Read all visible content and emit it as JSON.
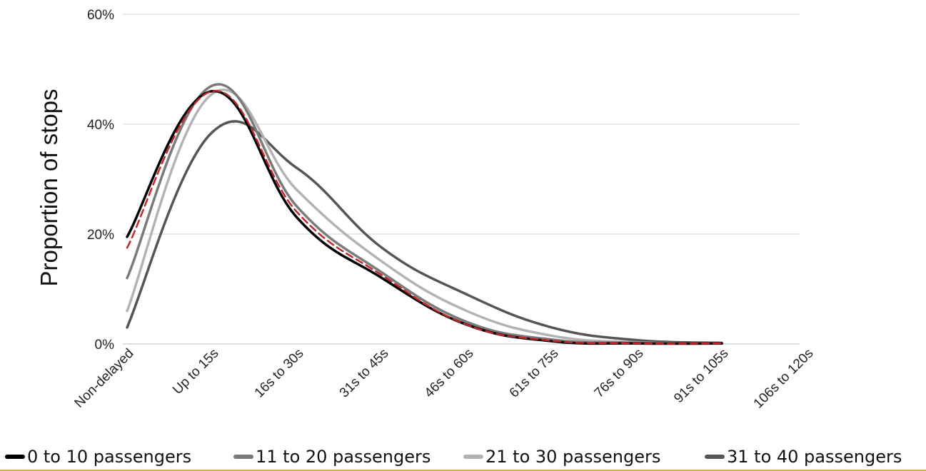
{
  "chart_data": {
    "type": "line",
    "title": "",
    "xlabel": "",
    "ylabel": "Proportion of stops",
    "categories": [
      "Non-delayed",
      "Up to 15s",
      "16s to 30s",
      "31s to 45s",
      "46s to 60s",
      "61s to 75s",
      "76s to 90s",
      "91s to 105s",
      "106s to 120s"
    ],
    "yticks": [
      "0%",
      "20%",
      "40%",
      "60%"
    ],
    "ylim": [
      0,
      60
    ],
    "grid": true,
    "legend_position": "bottom",
    "series": [
      {
        "name": "0 to 10 passengers",
        "color": "#000000",
        "dash": false,
        "values": [
          19.5,
          46,
          23,
          12,
          3.5,
          0.5,
          0.1,
          0.1,
          null
        ]
      },
      {
        "name": "11 to 20 passengers",
        "color": "#7a7a7a",
        "dash": false,
        "values": [
          12,
          47,
          25,
          13,
          4,
          0.8,
          0.2,
          0.1,
          null
        ]
      },
      {
        "name": "21 to 30 passengers",
        "color": "#b3b3b3",
        "dash": false,
        "values": [
          6,
          45.5,
          28,
          15,
          6,
          1.5,
          0.3,
          0.1,
          null
        ]
      },
      {
        "name": "31 to 40 passengers",
        "color": "#555555",
        "dash": false,
        "values": [
          3,
          38.5,
          32,
          17.5,
          9,
          3,
          0.7,
          0.2,
          null
        ]
      },
      {
        "name": "",
        "color": "#c0282d",
        "dash": true,
        "values": [
          17.5,
          46,
          24,
          12.5,
          3.5,
          0.6,
          0.1,
          0.1,
          null
        ]
      }
    ]
  }
}
